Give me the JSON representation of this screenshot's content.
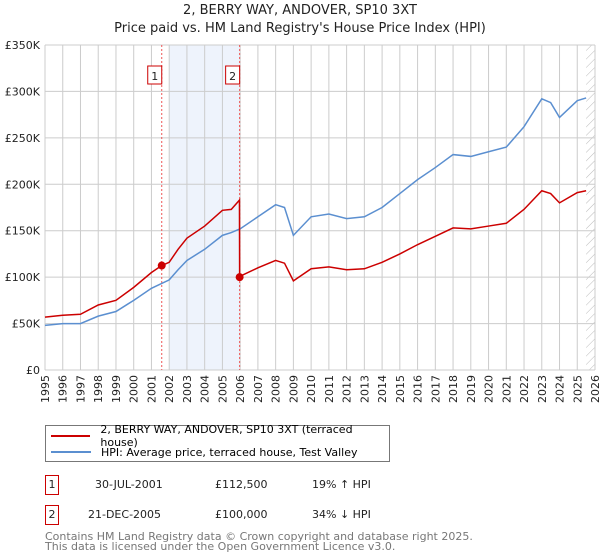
{
  "chart_data": {
    "type": "line",
    "title": "2, BERRY WAY, ANDOVER, SP10 3XT",
    "subtitle": "Price paid vs. HM Land Registry's House Price Index (HPI)",
    "xlim": [
      1995,
      2026
    ],
    "ylim": [
      0,
      350000
    ],
    "x_ticks": [
      "1995",
      "1996",
      "1997",
      "1998",
      "1999",
      "2000",
      "2001",
      "2002",
      "2003",
      "2004",
      "2005",
      "2006",
      "2007",
      "2008",
      "2009",
      "2010",
      "2011",
      "2012",
      "2013",
      "2014",
      "2015",
      "2016",
      "2017",
      "2018",
      "2019",
      "2020",
      "2021",
      "2022",
      "2023",
      "2024",
      "2025",
      "2026"
    ],
    "y_ticks": [
      {
        "v": 0,
        "label": "£0"
      },
      {
        "v": 50000,
        "label": "£50K"
      },
      {
        "v": 100000,
        "label": "£100K"
      },
      {
        "v": 150000,
        "label": "£150K"
      },
      {
        "v": 200000,
        "label": "£200K"
      },
      {
        "v": 250000,
        "label": "£250K"
      },
      {
        "v": 300000,
        "label": "£300K"
      },
      {
        "v": 350000,
        "label": "£350K"
      }
    ],
    "grid": true,
    "series": [
      {
        "name": "2, BERRY WAY, ANDOVER, SP10 3XT (terraced house)",
        "color": "#cc0000",
        "x": [
          1995,
          1996,
          1997,
          1998,
          1999,
          2000,
          2001,
          2001.58,
          2002,
          2002.5,
          2003,
          2004,
          2005,
          2005.5,
          2005.96,
          2005.97,
          2006,
          2007,
          2008,
          2008.5,
          2009,
          2010,
          2011,
          2012,
          2013,
          2014,
          2015,
          2016,
          2017,
          2018,
          2019,
          2020,
          2021,
          2022,
          2023,
          2023.5,
          2024,
          2025,
          2025.5
        ],
        "y": [
          57000,
          59000,
          60000,
          70000,
          75000,
          89000,
          105000,
          112500,
          116000,
          130000,
          142000,
          155000,
          172000,
          173000,
          183000,
          100000,
          101000,
          110000,
          118000,
          115000,
          96000,
          109000,
          111000,
          108000,
          109000,
          116000,
          125000,
          135000,
          144000,
          153000,
          152000,
          155000,
          158000,
          173000,
          193000,
          190000,
          180000,
          191000,
          193000
        ]
      },
      {
        "name": "HPI: Average price, terraced house, Test Valley",
        "color": "#5b8fd0",
        "x": [
          1995,
          1996,
          1997,
          1998,
          1999,
          2000,
          2001,
          2002,
          2002.5,
          2003,
          2004,
          2005,
          2005.5,
          2006,
          2007,
          2008,
          2008.5,
          2009,
          2010,
          2011,
          2012,
          2013,
          2014,
          2015,
          2016,
          2017,
          2018,
          2019,
          2020,
          2021,
          2022,
          2023,
          2023.5,
          2024,
          2025,
          2025.5
        ],
        "y": [
          48000,
          50000,
          50000,
          58000,
          63000,
          75000,
          88000,
          97000,
          108000,
          118000,
          130000,
          145000,
          148000,
          152000,
          165000,
          178000,
          175000,
          145000,
          165000,
          168000,
          163000,
          165000,
          175000,
          190000,
          205000,
          218000,
          232000,
          230000,
          235000,
          240000,
          262000,
          292000,
          288000,
          272000,
          290000,
          293000
        ]
      }
    ],
    "sales": [
      {
        "label": "1",
        "x": 2001.58,
        "y": 112500
      },
      {
        "label": "2",
        "x": 2005.97,
        "y": 100000
      }
    ],
    "shaded_range": [
      2002,
      2005.97
    ],
    "forecast_hatch_from": 2025.5
  },
  "legend": {
    "red": "2, BERRY WAY, ANDOVER, SP10 3XT (terraced house)",
    "blue": "HPI: Average price, terraced house, Test Valley"
  },
  "transactions": [
    {
      "num": "1",
      "date": "30-JUL-2001",
      "price": "£112,500",
      "hpi": "19% ↑ HPI"
    },
    {
      "num": "2",
      "date": "21-DEC-2005",
      "price": "£100,000",
      "hpi": "34% ↓ HPI"
    }
  ],
  "footer": {
    "line1": "Contains HM Land Registry data © Crown copyright and database right 2025.",
    "line2": "This data is licensed under the Open Government Licence v3.0."
  }
}
